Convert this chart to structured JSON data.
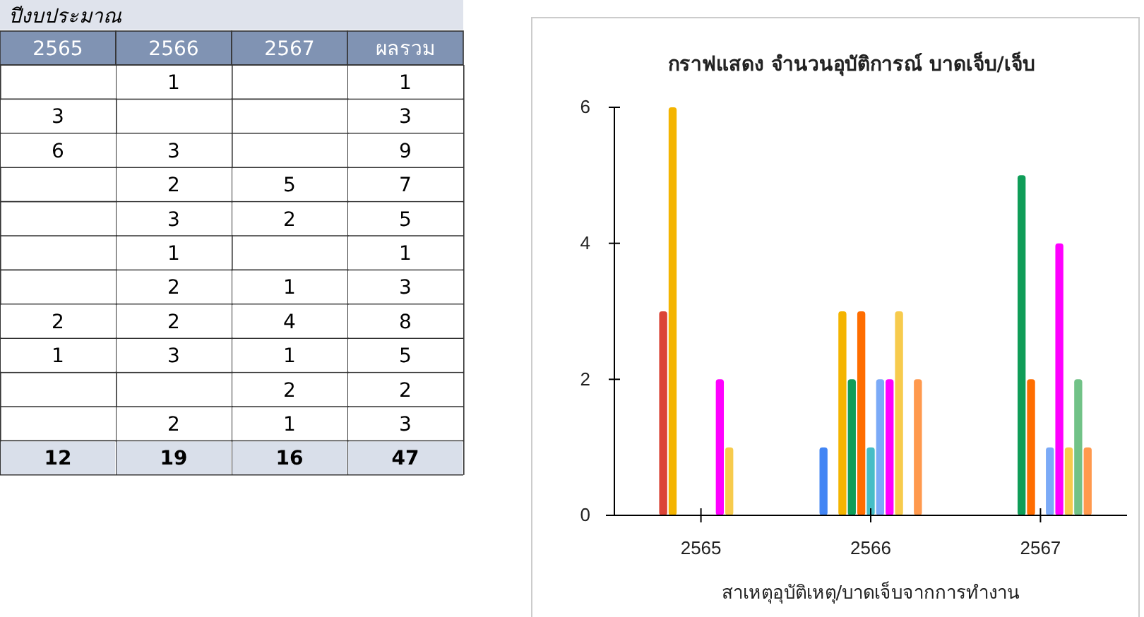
{
  "chart_data": [
    {
      "type": "other",
      "title": "ปีงบประมาณ",
      "categories": [
        "2565",
        "2566",
        "2567",
        "ผลรวม"
      ],
      "data_labels": true,
      "series": [
        {
          "values": [
            null,
            1,
            null,
            1
          ]
        },
        {
          "values": [
            3,
            null,
            null,
            3
          ]
        },
        {
          "values": [
            6,
            3,
            null,
            9
          ]
        },
        {
          "values": [
            null,
            2,
            5,
            7
          ]
        },
        {
          "values": [
            null,
            3,
            2,
            5
          ]
        },
        {
          "values": [
            null,
            1,
            null,
            1
          ]
        },
        {
          "values": [
            null,
            2,
            1,
            3
          ]
        },
        {
          "values": [
            2,
            2,
            4,
            8
          ]
        },
        {
          "values": [
            1,
            3,
            1,
            5
          ]
        },
        {
          "values": [
            null,
            null,
            2,
            2
          ]
        },
        {
          "values": [
            null,
            2,
            1,
            3
          ]
        },
        {
          "values": [
            12,
            19,
            16,
            47
          ]
        }
      ]
    },
    {
      "type": "bar",
      "title": "กราฟแสดง จำนวนอุบัติการณ์ บาดเจ็บ/เจ็บ",
      "xlabel": "สาเหตุอุบัติเหตุ/บาดเจ็บจากการทำงาน",
      "categories": [
        "2565",
        "2566",
        "2567"
      ],
      "ylim": [
        0,
        6
      ],
      "yticks": [
        0,
        2,
        4,
        6
      ],
      "grid": false,
      "series": [
        {
          "color": "#4285f4",
          "values": [
            0,
            1,
            0
          ]
        },
        {
          "color": "#db4437",
          "values": [
            3,
            0,
            0
          ]
        },
        {
          "color": "#f4b400",
          "values": [
            6,
            3,
            0
          ]
        },
        {
          "color": "#0f9d58",
          "values": [
            0,
            2,
            5
          ]
        },
        {
          "color": "#ff6d00",
          "values": [
            0,
            3,
            2
          ]
        },
        {
          "color": "#46bdc6",
          "values": [
            0,
            1,
            0
          ]
        },
        {
          "color": "#7baaf7",
          "values": [
            0,
            2,
            1
          ]
        },
        {
          "color": "#ff00ff",
          "values": [
            2,
            2,
            4
          ]
        },
        {
          "color": "#f7cb4d",
          "values": [
            1,
            3,
            1
          ]
        },
        {
          "color": "#71c287",
          "values": [
            0,
            0,
            2
          ]
        },
        {
          "color": "#ff994d",
          "values": [
            0,
            2,
            1
          ]
        }
      ]
    }
  ]
}
